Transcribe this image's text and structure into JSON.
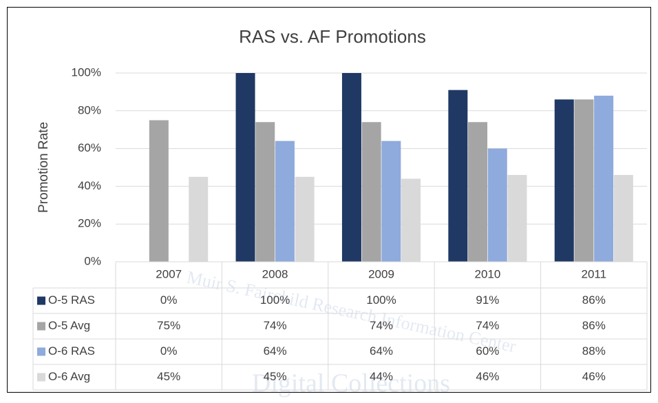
{
  "chart_data": {
    "type": "bar",
    "title": "RAS vs. AF Promotions",
    "y_label": "Promotion Rate",
    "categories": [
      "2007",
      "2008",
      "2009",
      "2010",
      "2011"
    ],
    "series": [
      {
        "name": "O-5 RAS",
        "color": "#203864",
        "values": [
          0,
          100,
          100,
          91,
          86
        ],
        "value_labels": [
          "0%",
          "100%",
          "100%",
          "91%",
          "86%"
        ]
      },
      {
        "name": "O-5 Avg",
        "color": "#a5a5a5",
        "values": [
          75,
          74,
          74,
          74,
          86
        ],
        "value_labels": [
          "75%",
          "74%",
          "74%",
          "74%",
          "86%"
        ]
      },
      {
        "name": "O-6 RAS",
        "color": "#8faadc",
        "values": [
          0,
          64,
          64,
          60,
          88
        ],
        "value_labels": [
          "0%",
          "64%",
          "64%",
          "60%",
          "88%"
        ]
      },
      {
        "name": "O-6 Avg",
        "color": "#d9d9d9",
        "values": [
          45,
          45,
          44,
          46,
          46
        ],
        "value_labels": [
          "45%",
          "45%",
          "44%",
          "46%",
          "46%"
        ]
      }
    ],
    "ylim": [
      0,
      100
    ],
    "yticks": [
      {
        "value": 0,
        "label": "0%"
      },
      {
        "value": 20,
        "label": "20%"
      },
      {
        "value": 40,
        "label": "40%"
      },
      {
        "value": 60,
        "label": "60%"
      },
      {
        "value": 80,
        "label": "80%"
      },
      {
        "value": 100,
        "label": "100%"
      }
    ],
    "grid": true,
    "watermark": [
      "Muir S. Fairchild Research Information Center",
      "Digital Collections"
    ]
  }
}
